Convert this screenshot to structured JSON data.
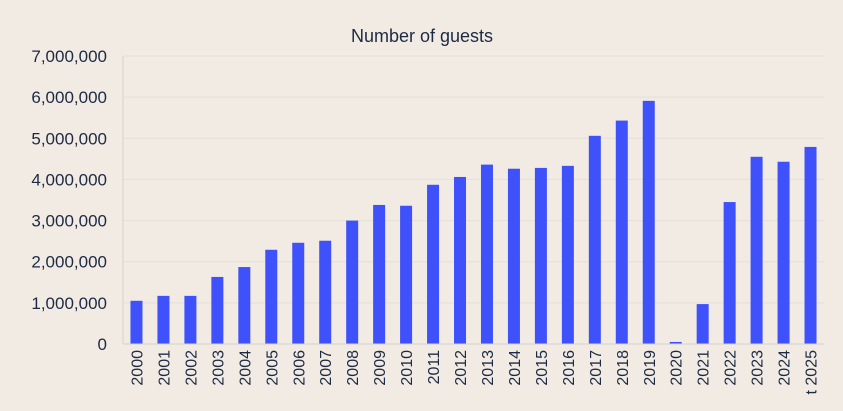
{
  "chart_data": {
    "type": "bar",
    "title": "Number of guests",
    "xlabel": "",
    "ylabel": "",
    "ylim": [
      0,
      7000000
    ],
    "yticks": [
      0,
      1000000,
      2000000,
      3000000,
      4000000,
      5000000,
      6000000,
      7000000
    ],
    "ytick_labels": [
      "0",
      "1,000,000",
      "2,000,000",
      "3,000,000",
      "4,000,000",
      "5,000,000",
      "6,000,000",
      "7,000,000"
    ],
    "grid": true,
    "bar_color": "#3f51fb",
    "categories": [
      "2000",
      "2001",
      "2002",
      "2003",
      "2004",
      "2005",
      "2006",
      "2007",
      "2008",
      "2009",
      "2010",
      "2011",
      "2012",
      "2013",
      "2014",
      "2015",
      "2016",
      "2017",
      "2018",
      "2019",
      "2020",
      "2021",
      "2022",
      "2023",
      "2024",
      "t 2025"
    ],
    "values": [
      1050000,
      1170000,
      1170000,
      1630000,
      1870000,
      2290000,
      2460000,
      2510000,
      3000000,
      3380000,
      3360000,
      3870000,
      4060000,
      4360000,
      4260000,
      4280000,
      4330000,
      5060000,
      5430000,
      5910000,
      50000,
      970000,
      3450000,
      4550000,
      4430000,
      4790000
    ]
  }
}
